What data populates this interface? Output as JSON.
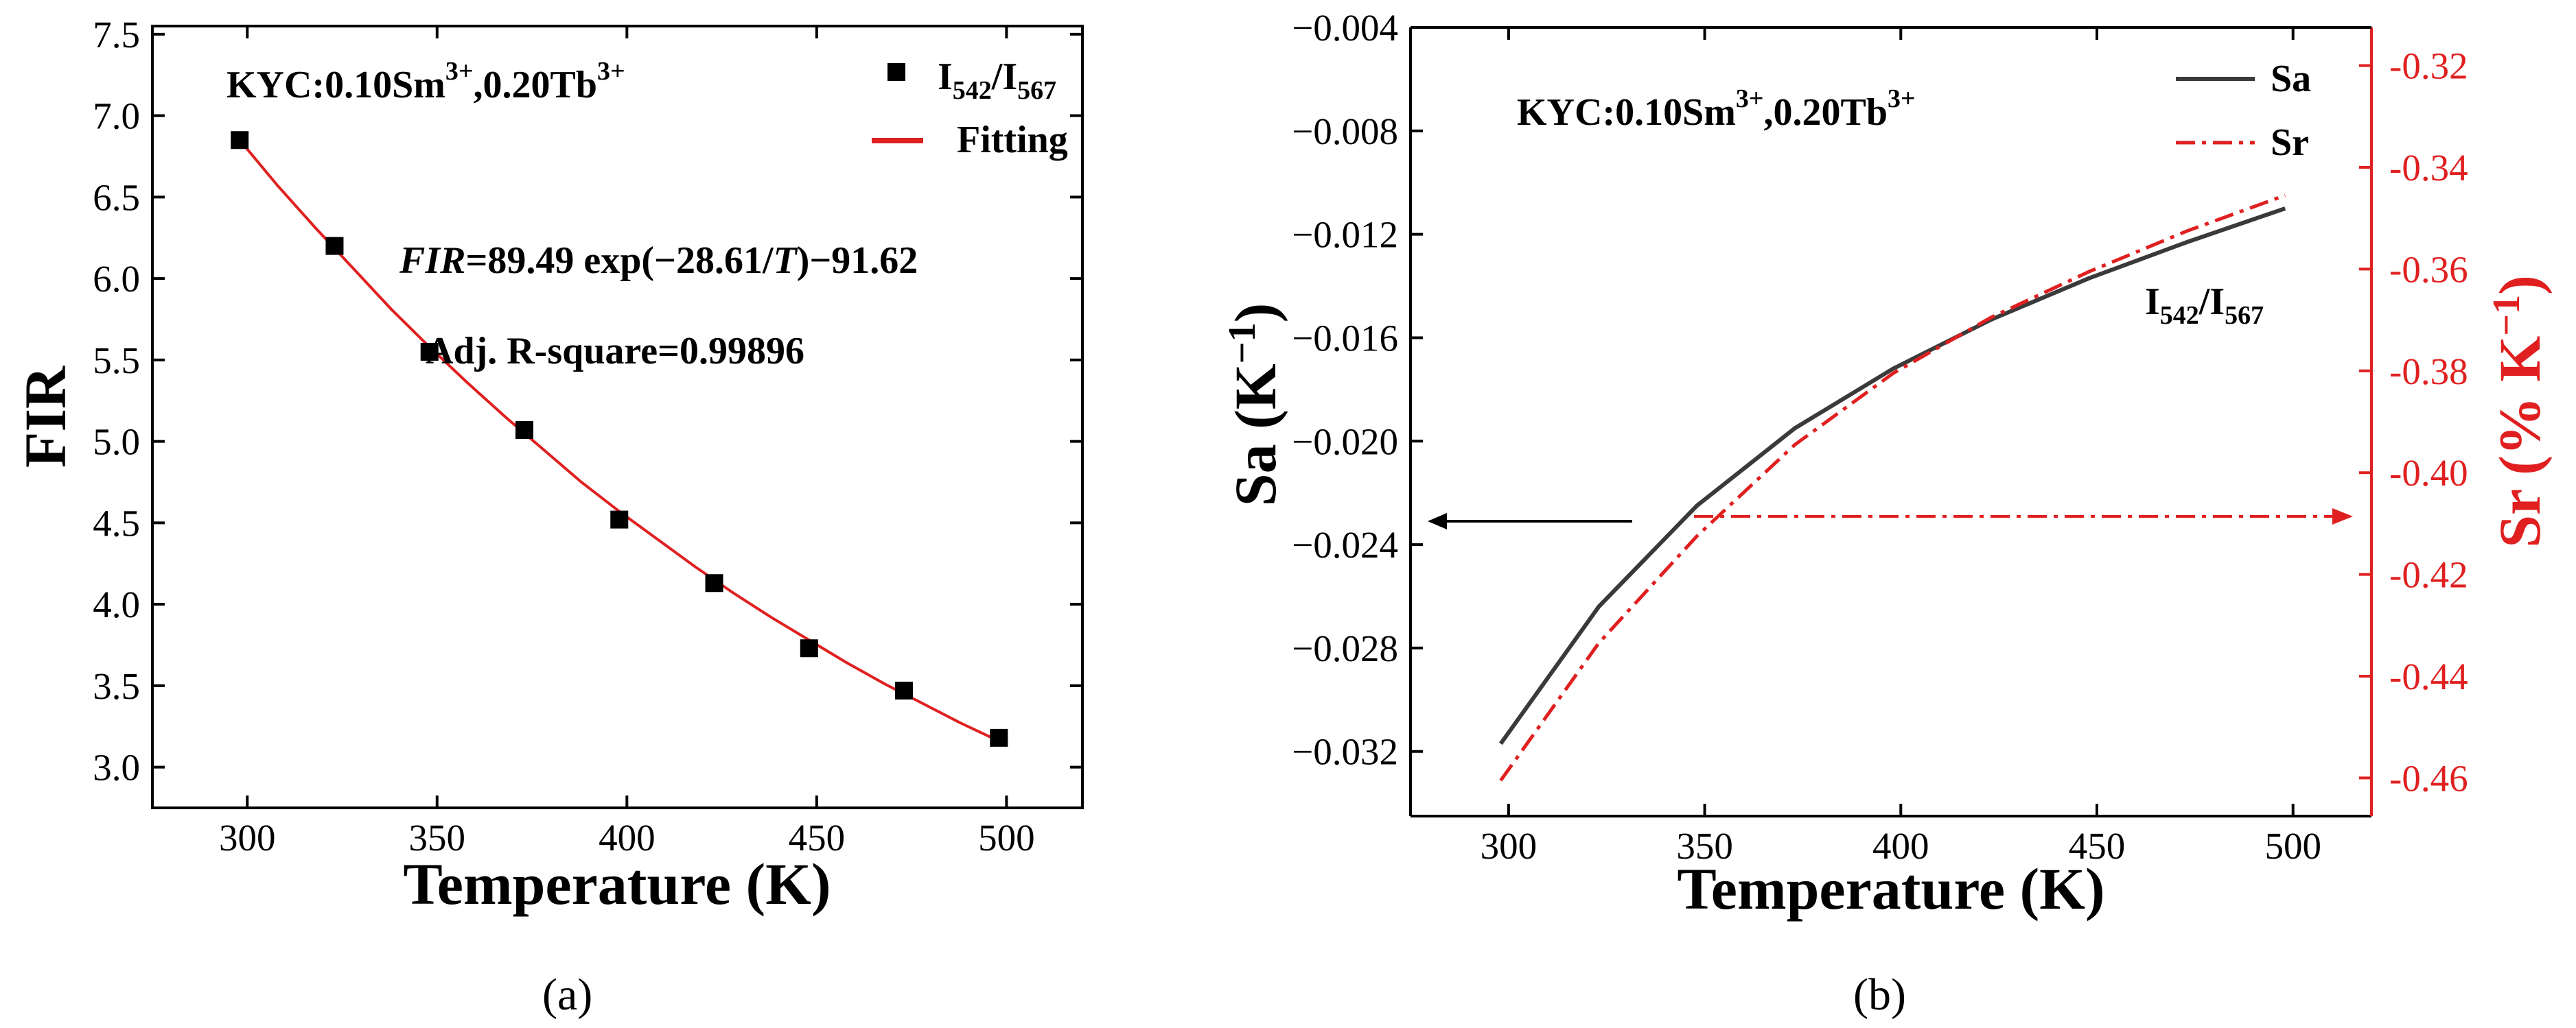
{
  "colors": {
    "axis": "#000000",
    "series_black": "#000000",
    "series_red": "#e02020",
    "secondary_axis": "#e02020"
  },
  "chart_data": [
    {
      "type": "scatter",
      "panel_label": "(a)",
      "xlabel": "Temperature (K)",
      "ylabel": "FIR",
      "xlim": [
        275,
        520
      ],
      "ylim": [
        2.75,
        7.55
      ],
      "xticks": [
        "300",
        "350",
        "400",
        "450",
        "500"
      ],
      "yticks": [
        "3.0",
        "3.5",
        "4.0",
        "4.5",
        "5.0",
        "5.5",
        "6.0",
        "6.5",
        "7.0",
        "7.5"
      ],
      "annotations": {
        "sample": {
          "base": "KYC:0.10Sm",
          "sup1": "3+",
          "mid": ",0.20Tb",
          "sup2": "3+"
        },
        "equation": {
          "italic1": "FIR",
          "part1": "=89.49 exp(−28.61/",
          "italic2": "T",
          "part2": ")−91.62"
        },
        "rsquare": "Adj. R-square=0.99896"
      },
      "legend": {
        "position": "top-right",
        "scatter": {
          "base": "I",
          "sub1": "542",
          "slash": "/I",
          "sub2": "567"
        },
        "line": "Fitting"
      },
      "series": [
        {
          "name": "I542/I567",
          "kind": "scatter",
          "x": [
            298,
            323,
            348,
            373,
            398,
            423,
            448,
            473,
            498
          ],
          "y": [
            6.85,
            6.2,
            5.55,
            5.07,
            4.52,
            4.13,
            3.73,
            3.47,
            3.18
          ]
        },
        {
          "name": "Fitting",
          "kind": "line",
          "x": [
            298,
            308,
            318,
            328,
            338,
            348,
            358,
            368,
            378,
            388,
            398,
            408,
            418,
            428,
            438,
            448,
            458,
            468,
            478,
            488,
            498
          ],
          "y": [
            6.85,
            6.57,
            6.31,
            6.06,
            5.81,
            5.58,
            5.36,
            5.15,
            4.95,
            4.75,
            4.57,
            4.4,
            4.23,
            4.07,
            3.92,
            3.78,
            3.64,
            3.51,
            3.39,
            3.27,
            3.16
          ]
        }
      ]
    },
    {
      "type": "line",
      "panel_label": "(b)",
      "xlabel": "Temperature (K)",
      "ylabel_left": {
        "base": "Sa (K",
        "sup": "−1",
        "close": ")"
      },
      "ylabel_right": {
        "base": "Sr (% K",
        "sup": "−1",
        "close": ")"
      },
      "xlim": [
        275,
        520
      ],
      "ylim_left": [
        -0.0345,
        -0.004
      ],
      "ylim_right": [
        -0.4675,
        -0.3125
      ],
      "xticks": [
        "300",
        "350",
        "400",
        "450",
        "500"
      ],
      "yticks_left": [
        "−0.004",
        "−0.008",
        "−0.012",
        "−0.016",
        "−0.020",
        "−0.024",
        "−0.028",
        "−0.032"
      ],
      "yticks_right": [
        "-0.32",
        "-0.34",
        "-0.36",
        "-0.38",
        "-0.40",
        "-0.42",
        "-0.44",
        "-0.46"
      ],
      "annotations": {
        "sample": {
          "base": "KYC:0.10Sm",
          "sup1": "3+",
          "mid": ",0.20Tb",
          "sup2": "3+"
        },
        "ratio": {
          "base": "I",
          "sub1": "542",
          "slash": "/I",
          "sub2": "567"
        }
      },
      "legend": {
        "position": "top-right",
        "entries": [
          "Sa",
          "Sr"
        ]
      },
      "series": [
        {
          "name": "Sa",
          "axis": "left",
          "x": [
            298,
            323,
            348,
            373,
            398,
            423,
            448,
            473,
            498
          ],
          "y": [
            -0.0317,
            -0.0264,
            -0.0225,
            -0.0195,
            -0.0172,
            -0.0153,
            -0.0137,
            -0.0123,
            -0.011
          ]
        },
        {
          "name": "Sr",
          "axis": "right",
          "x": [
            298,
            323,
            348,
            373,
            398,
            423,
            448,
            473,
            498
          ],
          "y": [
            -0.4605,
            -0.4335,
            -0.4125,
            -0.3945,
            -0.3805,
            -0.3695,
            -0.3605,
            -0.3525,
            -0.3455
          ]
        }
      ]
    }
  ]
}
